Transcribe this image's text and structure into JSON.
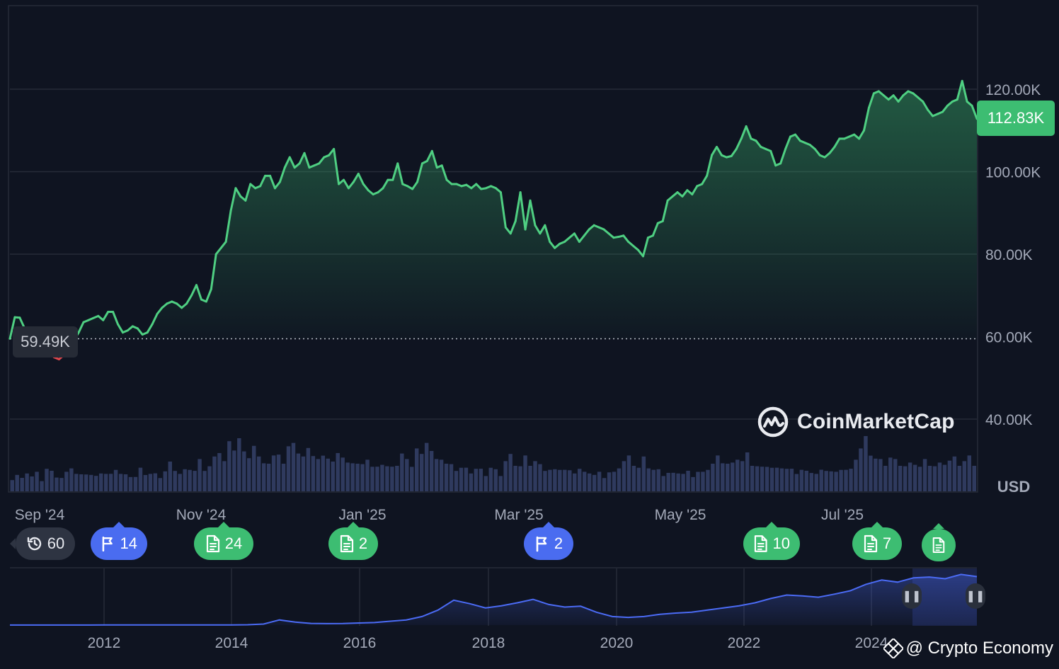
{
  "chart_data": {
    "type": "area",
    "currency_label": "USD",
    "y_axis": {
      "ticks": [
        "120.00K",
        "100.00K",
        "80.00K",
        "60.00K",
        "40.00K"
      ],
      "tick_values": [
        120000,
        100000,
        80000,
        60000,
        40000
      ],
      "ylim": [
        30000,
        140000
      ]
    },
    "x_axis": {
      "ticks": [
        "Sep '24",
        "Nov '24",
        "Jan '25",
        "Mar '25",
        "May '25",
        "Jul '25"
      ]
    },
    "current_price_label": "112.83K",
    "current_price": 112830,
    "baseline_label": "59.49K",
    "baseline": 59490,
    "grid": true,
    "colors": {
      "up": "#4fcf82",
      "down": "#e0474c",
      "volume": "#2f3a5e",
      "navigator": "#4b6bf5",
      "background": "#0f1421"
    },
    "series": [
      {
        "values": [
          59500,
          64700,
          64600,
          62000,
          61000,
          60500,
          58000,
          57000,
          56000,
          55000,
          54500,
          55500,
          57000,
          59000,
          61000,
          63500,
          64000,
          64500,
          65000,
          64000,
          66000,
          66000,
          63000,
          61000,
          61500,
          62500,
          62000,
          60500,
          61000,
          63000,
          65500,
          67000,
          68000,
          68500,
          68000,
          67000,
          68000,
          70000,
          72500,
          69000,
          68500,
          71500,
          80000,
          81500,
          83000,
          90500,
          96000,
          94000,
          93000,
          97000,
          96000,
          96500,
          99000,
          99000,
          96000,
          97500,
          101000,
          103500,
          101000,
          102000,
          104500,
          101000,
          101500,
          102000,
          103500,
          104000,
          105500,
          97000,
          98000,
          96000,
          97500,
          99500,
          97000,
          95500,
          94500,
          95000,
          96000,
          98000,
          98000,
          102000,
          97000,
          96500,
          95800,
          97500,
          102000,
          102600,
          105000,
          101000,
          101500,
          98000,
          97000,
          97000,
          96500,
          96800,
          96000,
          97000,
          95800,
          96000,
          96500,
          96000,
          95000,
          86500,
          85000,
          88000,
          95000,
          86000,
          93000,
          87000,
          85000,
          87000,
          83000,
          81500,
          82500,
          83000,
          84000,
          85000,
          83000,
          84500,
          86000,
          87000,
          86500,
          86000,
          85000,
          84000,
          84200,
          84500,
          83000,
          82000,
          81000,
          79500,
          84000,
          84500,
          87500,
          88000,
          93000,
          94000,
          95000,
          94000,
          95500,
          94500,
          96500,
          97000,
          99000,
          104000,
          106000,
          104000,
          103500,
          103800,
          105500,
          108000,
          111000,
          108000,
          107500,
          106000,
          105500,
          105000,
          101500,
          102000,
          105500,
          108500,
          109000,
          107500,
          107000,
          106500,
          105500,
          104000,
          103500,
          104500,
          106000,
          108000,
          108000,
          108500,
          109000,
          108000,
          110000,
          115500,
          119000,
          119500,
          118500,
          117500,
          118500,
          117000,
          118500,
          119500,
          119000,
          118000,
          117000,
          115000,
          113500,
          114000,
          114500,
          116000,
          117000,
          117500,
          122000,
          117000,
          116000,
          112830
        ]
      }
    ],
    "volume_relative": [
      0.22,
      0.28,
      0.18,
      0.35,
      0.25,
      0.3,
      0.2,
      0.4,
      0.32,
      0.27,
      0.22,
      0.3,
      0.45,
      0.3,
      0.25,
      0.33,
      0.28,
      0.22,
      0.35,
      0.3,
      0.26,
      0.42,
      0.3,
      0.25,
      0.28,
      0.24,
      0.38,
      0.32,
      0.3,
      0.27,
      0.26,
      0.35,
      0.5,
      0.4,
      0.3,
      0.35,
      0.42,
      0.36,
      0.55,
      0.4,
      0.45,
      0.6,
      0.75,
      0.55,
      0.9,
      0.8,
      1.0,
      0.7,
      0.65,
      0.85,
      0.6,
      0.55,
      0.5,
      0.62,
      0.72,
      0.5,
      0.8,
      0.95,
      0.7,
      0.6,
      0.85,
      0.65,
      0.55,
      0.7,
      0.6,
      0.5,
      0.75,
      0.62,
      0.48,
      0.55,
      0.5,
      0.45,
      0.62,
      0.44,
      0.4,
      0.52,
      0.45,
      0.4,
      0.5,
      0.7,
      0.55,
      0.48,
      0.8,
      0.65,
      0.95,
      0.75,
      0.55,
      0.62,
      0.5,
      0.45,
      0.4,
      0.42,
      0.38,
      0.35,
      0.4,
      0.36,
      0.3,
      0.42,
      0.35,
      0.3,
      0.55,
      0.65,
      0.5,
      0.45,
      0.62,
      0.5,
      0.55,
      0.45,
      0.4,
      0.38,
      0.35,
      0.42,
      0.38,
      0.33,
      0.35,
      0.4,
      0.3,
      0.35,
      0.28,
      0.3,
      0.26,
      0.33,
      0.3,
      0.45,
      0.55,
      0.62,
      0.5,
      0.42,
      0.6,
      0.45,
      0.38,
      0.35,
      0.3,
      0.32,
      0.28,
      0.35,
      0.3,
      0.32,
      0.28,
      0.34,
      0.3,
      0.42,
      0.5,
      0.62,
      0.55,
      0.5,
      0.48,
      0.62,
      0.55,
      0.68,
      0.5,
      0.45,
      0.4,
      0.48,
      0.42,
      0.38,
      0.45,
      0.4,
      0.36,
      0.34,
      0.38,
      0.32,
      0.36,
      0.3,
      0.34,
      0.4,
      0.35,
      0.3,
      0.42,
      0.38,
      0.36,
      0.62,
      0.8,
      1.0,
      0.7,
      0.6,
      0.55,
      0.5,
      0.62,
      0.55,
      0.5,
      0.45,
      0.48,
      0.52,
      0.44,
      0.55,
      0.5,
      0.45,
      0.48,
      0.52,
      0.56,
      0.6,
      0.5,
      0.55,
      0.62,
      0.5
    ]
  },
  "events": [
    {
      "kind": "history",
      "count": "60",
      "color": "gray"
    },
    {
      "kind": "flag",
      "count": "14",
      "color": "blue"
    },
    {
      "kind": "doc",
      "count": "24",
      "color": "green"
    },
    {
      "kind": "doc",
      "count": "2",
      "color": "green"
    },
    {
      "kind": "flag",
      "count": "2",
      "color": "blue"
    },
    {
      "kind": "doc",
      "count": "10",
      "color": "green"
    },
    {
      "kind": "doc",
      "count": "7",
      "color": "green"
    },
    {
      "kind": "doc",
      "count": "",
      "color": "green"
    }
  ],
  "navigator": {
    "ticks": [
      "2012",
      "2014",
      "2016",
      "2018",
      "2020",
      "2022",
      "2024"
    ],
    "values": [
      0.1,
      0.1,
      0.1,
      0.12,
      0.15,
      0.2,
      0.3,
      0.35,
      0.3,
      0.25,
      0.3,
      0.4,
      0.5,
      0.3,
      0.35,
      0.8,
      2.5,
      12,
      7,
      4,
      3.5,
      3.8,
      5,
      6,
      9,
      12,
      20,
      35,
      58,
      50,
      40,
      45,
      52,
      60,
      48,
      42,
      44,
      30,
      20,
      18,
      20,
      25,
      28,
      30,
      35,
      40,
      45,
      52,
      62,
      70,
      68,
      65,
      72,
      80,
      95,
      105,
      100,
      110,
      112,
      108,
      118,
      113
    ]
  },
  "branding": {
    "logo_text": "CoinMarketCap",
    "watermark": "@ Crypto Economy"
  }
}
